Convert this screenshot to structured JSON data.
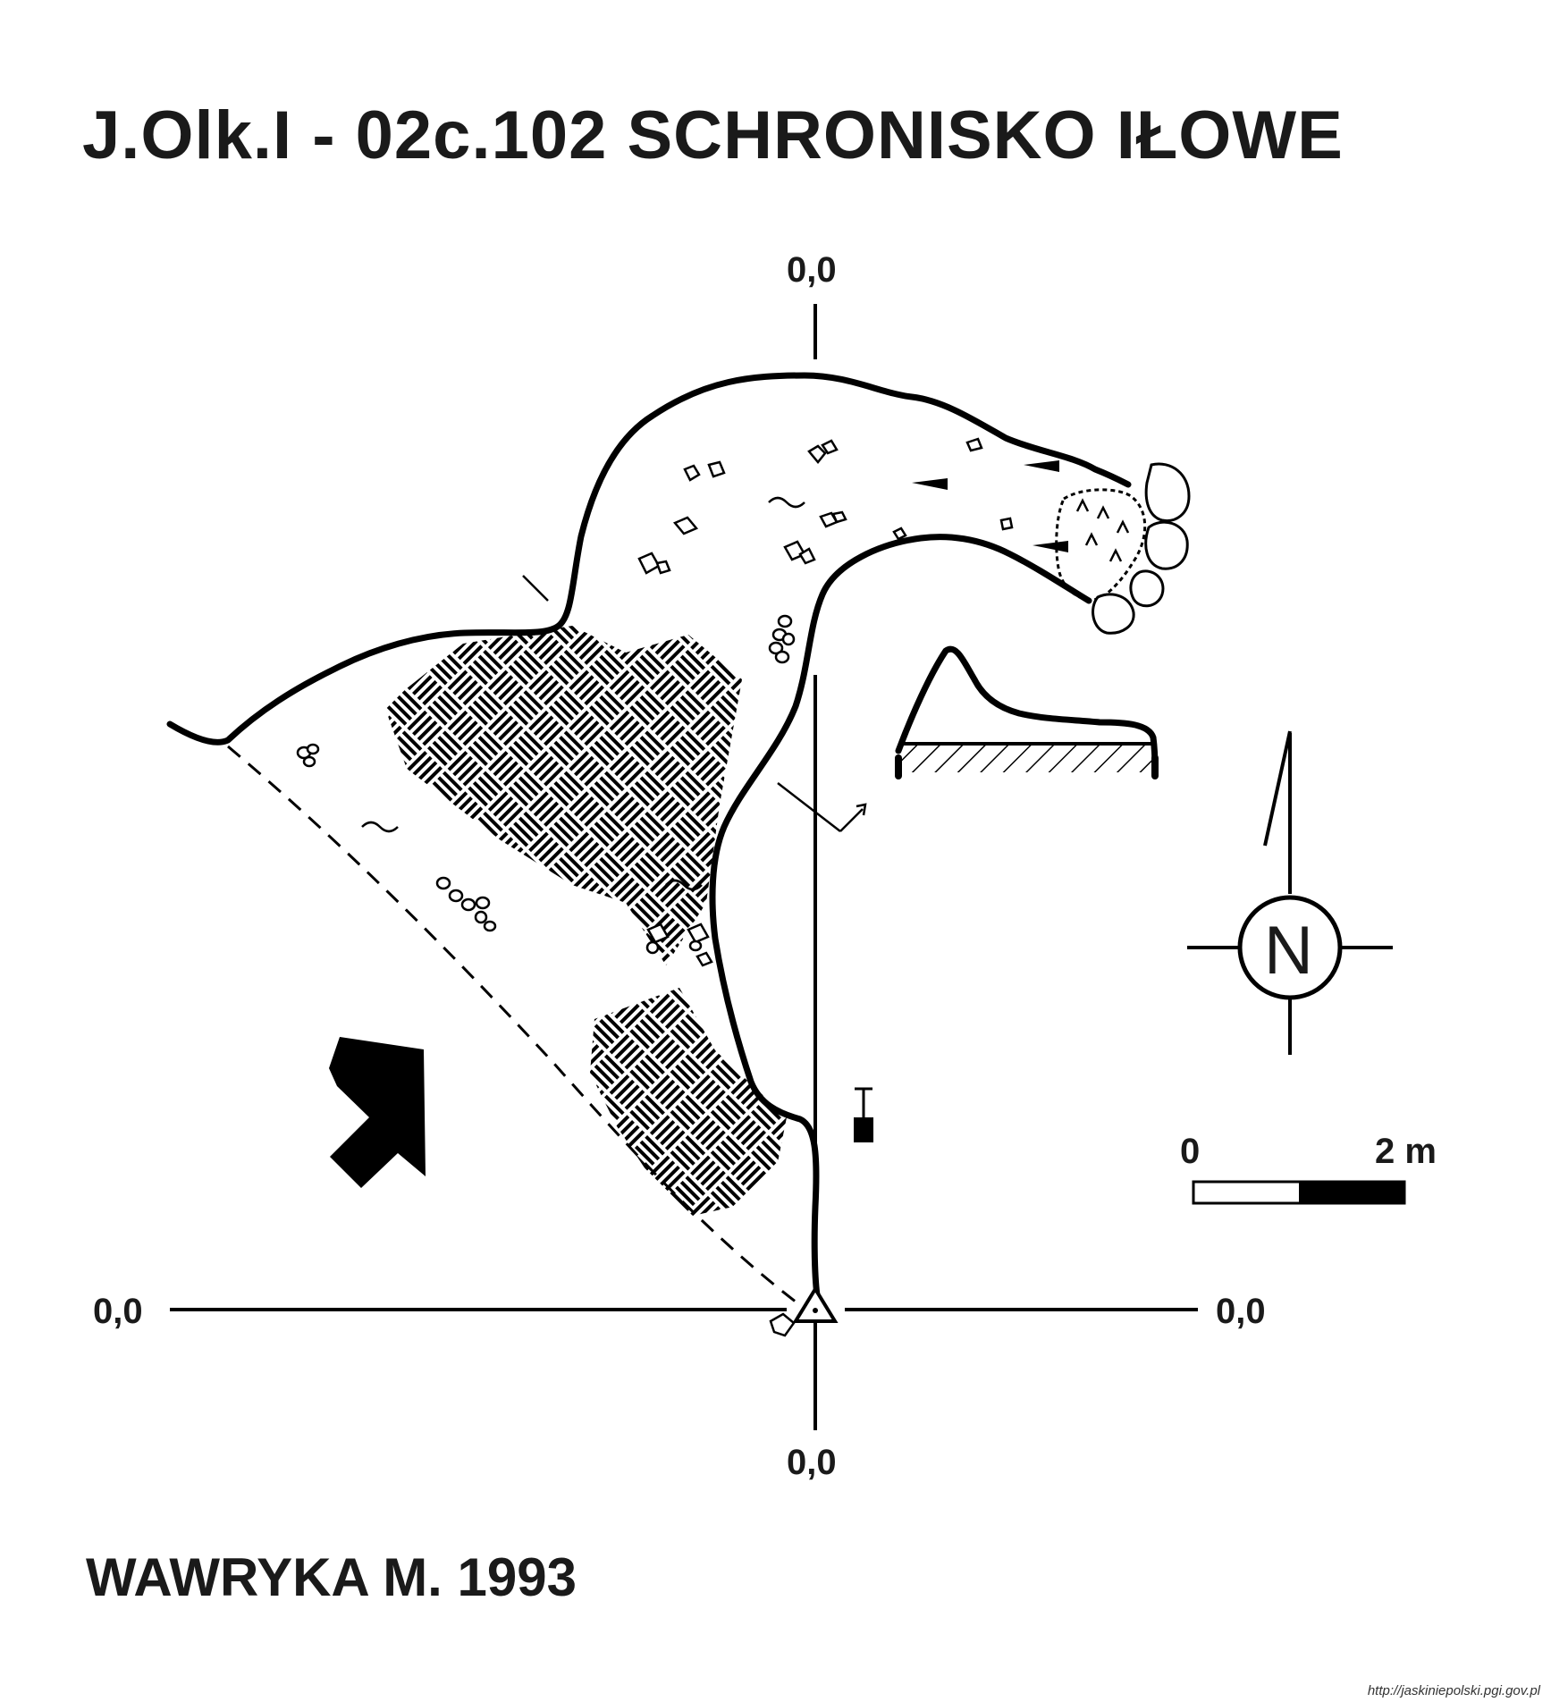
{
  "title": "J.Olk.I - 02c.102  SCHRONISKO IŁOWE",
  "author": "WAWRYKA M. 1993",
  "coordinates": {
    "top": "0,0",
    "bottom": "0,0",
    "left": "0,0",
    "right": "0,0"
  },
  "compass": {
    "letter": "N"
  },
  "scale": {
    "start": "0",
    "end": "2 m"
  },
  "source_url": "http://jaskiniepolski.pgi.gov.pl",
  "colors": {
    "ink": "#000000",
    "paper": "#ffffff"
  }
}
